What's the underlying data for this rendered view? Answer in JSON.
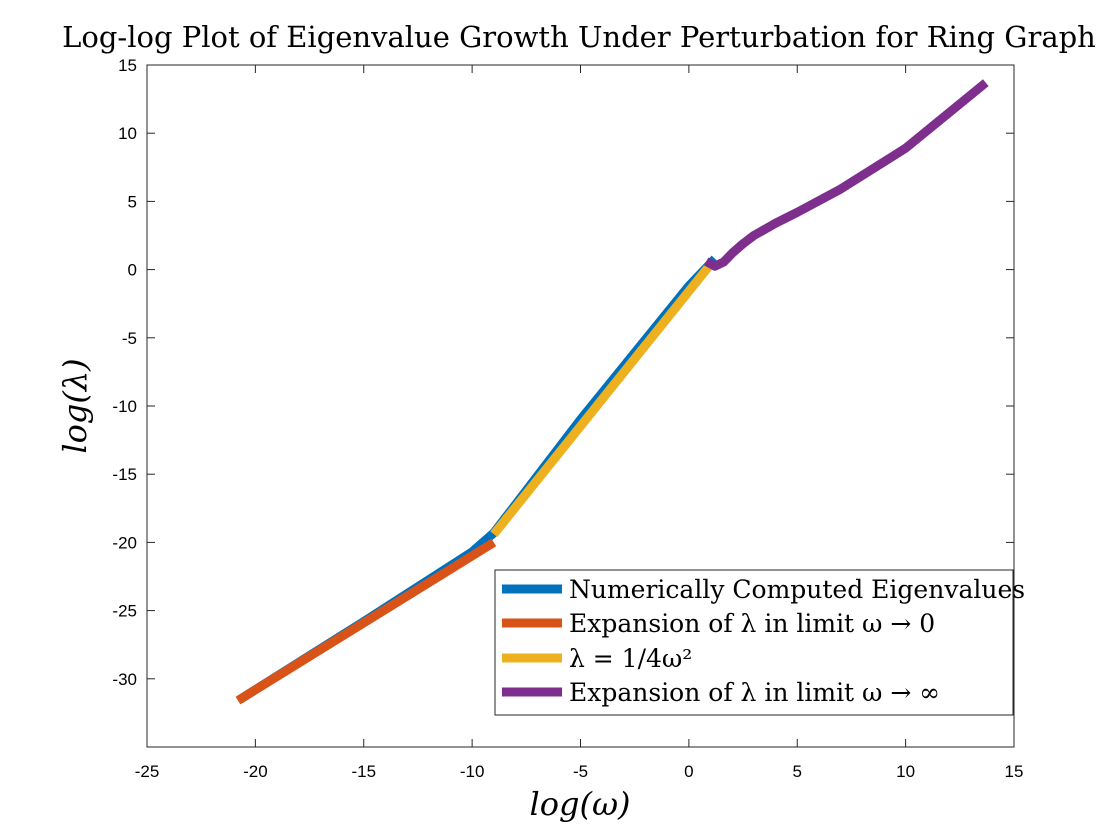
{
  "chart_data": {
    "type": "line",
    "title": "Log-log Plot of Eigenvalue Growth Under Perturbation for Ring Graph",
    "xlabel": "log(ω)",
    "ylabel": "log(λ)",
    "xlim": [
      -25,
      15
    ],
    "ylim": [
      -35,
      15
    ],
    "xticks": [
      -25,
      -20,
      -15,
      -10,
      -5,
      0,
      5,
      10,
      15
    ],
    "yticks": [
      -30,
      -25,
      -20,
      -15,
      -10,
      -5,
      0,
      5,
      10,
      15
    ],
    "grid": false,
    "legend_position": "bottom-right",
    "series": [
      {
        "name": "Numerically Computed Eigenvalues",
        "color": "#0072BD",
        "x": [
          -20.7,
          -15,
          -10,
          -9.0,
          -5,
          0,
          1.2
        ],
        "y": [
          -31.5,
          -25.8,
          -20.7,
          -19.3,
          -11.0,
          -1.2,
          0.8
        ]
      },
      {
        "name": "Expansion of λ in limit ω → 0",
        "color": "#D95319",
        "x": [
          -20.8,
          -9.0
        ],
        "y": [
          -31.6,
          -20.0
        ]
      },
      {
        "name": "λ = 1/4ω²",
        "color": "#EDB120",
        "x": [
          -9.0,
          0.9
        ],
        "y": [
          -19.4,
          0.2
        ]
      },
      {
        "name": "Expansion of λ in limit ω → ∞",
        "color": "#7E2F8E",
        "x": [
          0.8,
          1.2,
          1.6,
          2.0,
          2.5,
          3.0,
          4.0,
          5.0,
          7.0,
          10.0,
          13.7
        ],
        "y": [
          0.6,
          0.25,
          0.55,
          1.2,
          1.9,
          2.5,
          3.4,
          4.2,
          5.9,
          8.9,
          13.7
        ]
      }
    ]
  }
}
